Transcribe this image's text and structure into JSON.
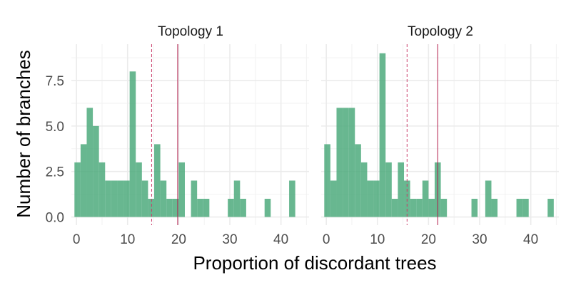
{
  "chart_data": {
    "type": "histogram",
    "xlabel": "Proportion of discordant trees",
    "ylabel": "Number of branches",
    "xlim": [
      -1,
      45.5
    ],
    "ylim": [
      -0.45,
      9.5
    ],
    "x_ticks": [
      0,
      10,
      20,
      30,
      40
    ],
    "x_tick_labels": [
      "0",
      "10",
      "20",
      "30",
      "40"
    ],
    "y_ticks": [
      0,
      2.5,
      5,
      7.5
    ],
    "y_tick_labels": [
      "0.0",
      "2.5",
      "5.0",
      "7.5"
    ],
    "grid": true,
    "legend": "none",
    "bar_color": "#4daa7d",
    "line_colors": {
      "solid": "#b01a4a",
      "dashed": "#c93c6a"
    },
    "panels": [
      {
        "title": "Topology 1",
        "bins": [
          {
            "x0": -0.4,
            "x1": 0.8,
            "count": 3
          },
          {
            "x0": 0.8,
            "x1": 2.0,
            "count": 4
          },
          {
            "x0": 2.0,
            "x1": 3.2,
            "count": 6
          },
          {
            "x0": 3.2,
            "x1": 4.4,
            "count": 5
          },
          {
            "x0": 4.4,
            "x1": 5.6,
            "count": 3
          },
          {
            "x0": 5.6,
            "x1": 6.8,
            "count": 2
          },
          {
            "x0": 6.8,
            "x1": 8.0,
            "count": 2
          },
          {
            "x0": 8.0,
            "x1": 9.2,
            "count": 2
          },
          {
            "x0": 9.2,
            "x1": 10.4,
            "count": 2
          },
          {
            "x0": 10.4,
            "x1": 11.6,
            "count": 8
          },
          {
            "x0": 11.6,
            "x1": 12.8,
            "count": 3
          },
          {
            "x0": 12.8,
            "x1": 14.0,
            "count": 2
          },
          {
            "x0": 14.0,
            "x1": 15.2,
            "count": 1
          },
          {
            "x0": 15.2,
            "x1": 16.4,
            "count": 4
          },
          {
            "x0": 16.4,
            "x1": 17.6,
            "count": 2
          },
          {
            "x0": 17.6,
            "x1": 18.8,
            "count": 1
          },
          {
            "x0": 18.8,
            "x1": 20.0,
            "count": 1
          },
          {
            "x0": 20.0,
            "x1": 21.2,
            "count": 3
          },
          {
            "x0": 22.4,
            "x1": 23.6,
            "count": 2
          },
          {
            "x0": 23.6,
            "x1": 24.8,
            "count": 1
          },
          {
            "x0": 24.8,
            "x1": 26.0,
            "count": 1
          },
          {
            "x0": 29.6,
            "x1": 30.8,
            "count": 1
          },
          {
            "x0": 30.8,
            "x1": 32.0,
            "count": 2
          },
          {
            "x0": 32.0,
            "x1": 33.2,
            "count": 1
          },
          {
            "x0": 36.8,
            "x1": 38.0,
            "count": 1
          },
          {
            "x0": 41.6,
            "x1": 42.8,
            "count": 2
          }
        ],
        "vlines": [
          {
            "x": 14.7,
            "style": "dashed"
          },
          {
            "x": 19.8,
            "style": "solid"
          }
        ]
      },
      {
        "title": "Topology 2",
        "bins": [
          {
            "x0": -0.4,
            "x1": 0.8,
            "count": 4
          },
          {
            "x0": 0.8,
            "x1": 2.0,
            "count": 2
          },
          {
            "x0": 2.0,
            "x1": 3.2,
            "count": 6
          },
          {
            "x0": 3.2,
            "x1": 4.4,
            "count": 6
          },
          {
            "x0": 4.4,
            "x1": 5.6,
            "count": 6
          },
          {
            "x0": 5.6,
            "x1": 6.8,
            "count": 4
          },
          {
            "x0": 6.8,
            "x1": 8.0,
            "count": 3
          },
          {
            "x0": 8.0,
            "x1": 9.2,
            "count": 2
          },
          {
            "x0": 9.2,
            "x1": 10.4,
            "count": 2
          },
          {
            "x0": 10.4,
            "x1": 11.6,
            "count": 9
          },
          {
            "x0": 11.6,
            "x1": 12.8,
            "count": 3
          },
          {
            "x0": 12.8,
            "x1": 14.0,
            "count": 1
          },
          {
            "x0": 14.0,
            "x1": 15.2,
            "count": 3
          },
          {
            "x0": 15.2,
            "x1": 16.4,
            "count": 2
          },
          {
            "x0": 16.4,
            "x1": 17.6,
            "count": 1
          },
          {
            "x0": 17.6,
            "x1": 18.8,
            "count": 1
          },
          {
            "x0": 18.8,
            "x1": 20.0,
            "count": 2
          },
          {
            "x0": 20.0,
            "x1": 21.2,
            "count": 1
          },
          {
            "x0": 21.2,
            "x1": 22.4,
            "count": 3
          },
          {
            "x0": 22.4,
            "x1": 23.6,
            "count": 1
          },
          {
            "x0": 28.4,
            "x1": 29.6,
            "count": 1
          },
          {
            "x0": 31.1,
            "x1": 32.3,
            "count": 2
          },
          {
            "x0": 32.3,
            "x1": 33.5,
            "count": 1
          },
          {
            "x0": 37.2,
            "x1": 38.4,
            "count": 1
          },
          {
            "x0": 38.4,
            "x1": 39.6,
            "count": 1
          },
          {
            "x0": 43.3,
            "x1": 44.5,
            "count": 1
          }
        ],
        "vlines": [
          {
            "x": 15.8,
            "style": "dashed"
          },
          {
            "x": 21.8,
            "style": "solid"
          }
        ]
      }
    ]
  }
}
